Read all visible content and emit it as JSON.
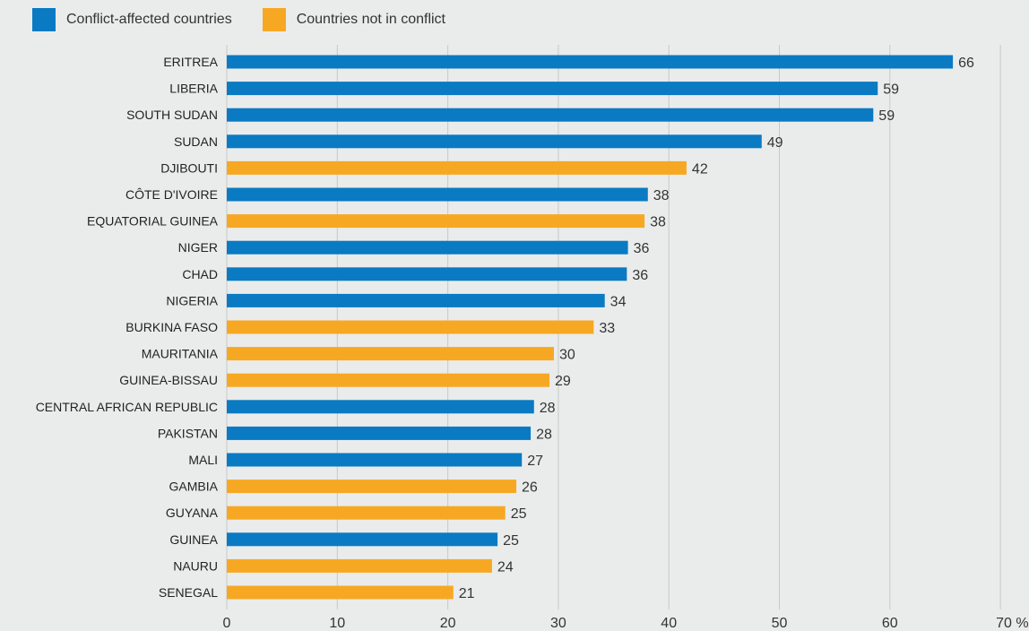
{
  "colors": {
    "background": "#eaecec",
    "gridline": "#c8c8c8",
    "conflict": "#0a7ac3",
    "not_conflict": "#f7a823"
  },
  "legend": {
    "items": [
      {
        "label": "Conflict-affected countries",
        "color": "#0a7ac3"
      },
      {
        "label": "Countries not in conflict",
        "color": "#f7a823"
      }
    ]
  },
  "chart_data": {
    "type": "bar",
    "orientation": "horizontal",
    "title": "",
    "xlabel": "",
    "ylabel": "",
    "xlim": [
      0,
      70
    ],
    "x_ticks": [
      "0",
      "10",
      "20",
      "30",
      "40",
      "50",
      "60",
      "70 %"
    ],
    "grid": true,
    "legend_position": "top-left",
    "series": [
      {
        "name": "Conflict-affected countries",
        "color": "#0a7ac3"
      },
      {
        "name": "Countries not in conflict",
        "color": "#f7a823"
      }
    ],
    "bars": [
      {
        "category": "ERITREA",
        "value": 65.7,
        "label": "66",
        "series": "Conflict-affected countries"
      },
      {
        "category": "LIBERIA",
        "value": 58.9,
        "label": "59",
        "series": "Conflict-affected countries"
      },
      {
        "category": "SOUTH SUDAN",
        "value": 58.5,
        "label": "59",
        "series": "Conflict-affected countries"
      },
      {
        "category": "SUDAN",
        "value": 48.4,
        "label": "49",
        "series": "Conflict-affected countries"
      },
      {
        "category": "DJIBOUTI",
        "value": 41.6,
        "label": "42",
        "series": "Countries not in conflict"
      },
      {
        "category": "CÔTE D'IVOIRE",
        "value": 38.1,
        "label": "38",
        "series": "Conflict-affected countries"
      },
      {
        "category": "EQUATORIAL GUINEA",
        "value": 37.8,
        "label": "38",
        "series": "Countries not in conflict"
      },
      {
        "category": "NIGER",
        "value": 36.3,
        "label": "36",
        "series": "Conflict-affected countries"
      },
      {
        "category": "CHAD",
        "value": 36.2,
        "label": "36",
        "series": "Conflict-affected countries"
      },
      {
        "category": "NIGERIA",
        "value": 34.2,
        "label": "34",
        "series": "Conflict-affected countries"
      },
      {
        "category": "BURKINA FASO",
        "value": 33.2,
        "label": "33",
        "series": "Countries not in conflict"
      },
      {
        "category": "MAURITANIA",
        "value": 29.6,
        "label": "30",
        "series": "Countries not in conflict"
      },
      {
        "category": "GUINEA-BISSAU",
        "value": 29.2,
        "label": "29",
        "series": "Countries not in conflict"
      },
      {
        "category": "CENTRAL AFRICAN REPUBLIC",
        "value": 27.8,
        "label": "28",
        "series": "Conflict-affected countries"
      },
      {
        "category": "PAKISTAN",
        "value": 27.5,
        "label": "28",
        "series": "Conflict-affected countries"
      },
      {
        "category": "MALI",
        "value": 26.7,
        "label": "27",
        "series": "Conflict-affected countries"
      },
      {
        "category": "GAMBIA",
        "value": 26.2,
        "label": "26",
        "series": "Countries not in conflict"
      },
      {
        "category": "GUYANA",
        "value": 25.2,
        "label": "25",
        "series": "Countries not in conflict"
      },
      {
        "category": "GUINEA",
        "value": 24.5,
        "label": "25",
        "series": "Conflict-affected countries"
      },
      {
        "category": "NAURU",
        "value": 24.0,
        "label": "24",
        "series": "Countries not in conflict"
      },
      {
        "category": "SENEGAL",
        "value": 20.5,
        "label": "21",
        "series": "Countries not in conflict"
      }
    ]
  }
}
